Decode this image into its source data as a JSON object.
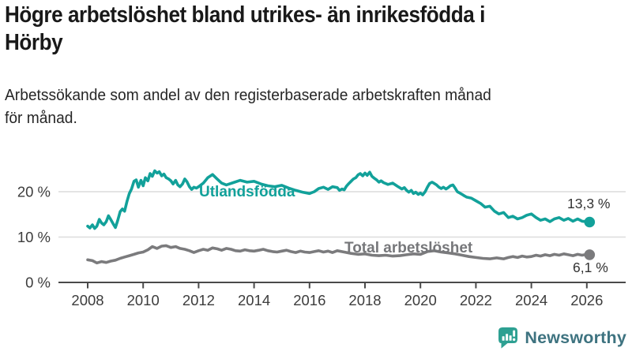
{
  "page": {
    "title": "Högre arbetslöshet bland utrikes- än inrikesfödda i\nHörby",
    "subtitle": "Arbetssökande som andel av den registerbaserade arbetskraften månad\nför månad."
  },
  "logo": {
    "text": "Newsworthy",
    "icon": "newsworthy-chart-bubble-icon",
    "icon_color": "#2da092",
    "text_color": "#3e7380"
  },
  "chart_data": {
    "type": "line",
    "title": "Högre arbetslöshet bland utrikes- än inrikesfödda i Hörby",
    "subtitle": "Arbetssökande som andel av den registerbaserade arbetskraften månad för månad.",
    "unit": "%",
    "legend_position": "inline-labels",
    "grid": "horizontal",
    "x_axis": {
      "ticks": [
        {
          "year": 2008,
          "label": "2008"
        },
        {
          "year": 2010,
          "label": "2010"
        },
        {
          "year": 2012,
          "label": "2012"
        },
        {
          "year": 2014,
          "label": "2014"
        },
        {
          "year": 2016,
          "label": "2016"
        },
        {
          "year": 2018,
          "label": "2018"
        },
        {
          "year": 2020,
          "label": "2020"
        },
        {
          "year": 2022,
          "label": "2022"
        },
        {
          "year": 2024,
          "label": "2024"
        },
        {
          "year": 2026,
          "label": "2026"
        }
      ],
      "range": [
        2008,
        2026.4
      ]
    },
    "y_axis": {
      "ticks": [
        {
          "value": 0,
          "label": "0 %"
        },
        {
          "value": 10,
          "label": "10 %"
        },
        {
          "value": 20,
          "label": "20 %"
        }
      ],
      "gridline_values": [
        10,
        20
      ],
      "range": [
        0,
        26
      ]
    },
    "series": [
      {
        "id": "utlandsfodda",
        "name": "Utlandsfödda",
        "color": "#12a19a",
        "end_label": "13,3 %",
        "end_value": 13.3,
        "points": [
          [
            2008.0,
            12.4
          ],
          [
            2008.08,
            12.0
          ],
          [
            2008.17,
            12.7
          ],
          [
            2008.25,
            11.9
          ],
          [
            2008.33,
            12.4
          ],
          [
            2008.42,
            13.9
          ],
          [
            2008.5,
            13.1
          ],
          [
            2008.58,
            12.7
          ],
          [
            2008.67,
            13.4
          ],
          [
            2008.75,
            14.7
          ],
          [
            2008.83,
            13.9
          ],
          [
            2008.92,
            12.9
          ],
          [
            2009.0,
            12.1
          ],
          [
            2009.08,
            13.6
          ],
          [
            2009.17,
            15.6
          ],
          [
            2009.25,
            16.2
          ],
          [
            2009.33,
            15.7
          ],
          [
            2009.42,
            17.9
          ],
          [
            2009.5,
            19.6
          ],
          [
            2009.58,
            20.6
          ],
          [
            2009.67,
            22.3
          ],
          [
            2009.75,
            22.6
          ],
          [
            2009.83,
            21.0
          ],
          [
            2009.92,
            22.5
          ],
          [
            2010.0,
            21.3
          ],
          [
            2010.08,
            23.1
          ],
          [
            2010.17,
            22.4
          ],
          [
            2010.25,
            24.0
          ],
          [
            2010.33,
            23.4
          ],
          [
            2010.42,
            24.6
          ],
          [
            2010.5,
            24.1
          ],
          [
            2010.58,
            24.4
          ],
          [
            2010.67,
            23.5
          ],
          [
            2010.75,
            23.9
          ],
          [
            2010.83,
            23.1
          ],
          [
            2010.92,
            22.8
          ],
          [
            2011.0,
            22.4
          ],
          [
            2011.08,
            21.7
          ],
          [
            2011.17,
            22.5
          ],
          [
            2011.25,
            21.5
          ],
          [
            2011.33,
            21.1
          ],
          [
            2011.42,
            21.7
          ],
          [
            2011.5,
            22.8
          ],
          [
            2011.58,
            22.2
          ],
          [
            2011.67,
            21.1
          ],
          [
            2011.75,
            20.5
          ],
          [
            2011.83,
            21.0
          ],
          [
            2011.92,
            20.8
          ],
          [
            2012.0,
            21.1
          ],
          [
            2012.17,
            21.9
          ],
          [
            2012.33,
            23.1
          ],
          [
            2012.5,
            23.8
          ],
          [
            2012.67,
            22.8
          ],
          [
            2012.83,
            21.9
          ],
          [
            2013.0,
            21.5
          ],
          [
            2013.25,
            22.0
          ],
          [
            2013.5,
            22.5
          ],
          [
            2013.75,
            22.1
          ],
          [
            2014.0,
            22.3
          ],
          [
            2014.25,
            21.7
          ],
          [
            2014.5,
            21.3
          ],
          [
            2014.75,
            21.1
          ],
          [
            2015.0,
            21.4
          ],
          [
            2015.25,
            20.8
          ],
          [
            2015.5,
            20.3
          ],
          [
            2015.75,
            19.9
          ],
          [
            2016.0,
            19.6
          ],
          [
            2016.17,
            20.0
          ],
          [
            2016.33,
            20.7
          ],
          [
            2016.5,
            21.0
          ],
          [
            2016.67,
            20.5
          ],
          [
            2016.83,
            21.1
          ],
          [
            2017.0,
            20.9
          ],
          [
            2017.08,
            20.3
          ],
          [
            2017.17,
            20.6
          ],
          [
            2017.25,
            20.4
          ],
          [
            2017.33,
            21.2
          ],
          [
            2017.42,
            21.8
          ],
          [
            2017.5,
            22.3
          ],
          [
            2017.58,
            22.8
          ],
          [
            2017.67,
            23.1
          ],
          [
            2017.75,
            23.7
          ],
          [
            2017.83,
            24.0
          ],
          [
            2017.92,
            23.5
          ],
          [
            2018.0,
            24.1
          ],
          [
            2018.08,
            23.6
          ],
          [
            2018.17,
            24.3
          ],
          [
            2018.25,
            23.4
          ],
          [
            2018.33,
            23.0
          ],
          [
            2018.42,
            22.6
          ],
          [
            2018.5,
            22.1
          ],
          [
            2018.58,
            22.4
          ],
          [
            2018.67,
            22.0
          ],
          [
            2018.83,
            21.6
          ],
          [
            2019.0,
            21.9
          ],
          [
            2019.17,
            21.2
          ],
          [
            2019.33,
            20.6
          ],
          [
            2019.42,
            20.9
          ],
          [
            2019.5,
            20.3
          ],
          [
            2019.58,
            19.9
          ],
          [
            2019.67,
            20.3
          ],
          [
            2019.75,
            19.6
          ],
          [
            2019.83,
            19.9
          ],
          [
            2019.92,
            19.4
          ],
          [
            2020.0,
            19.7
          ],
          [
            2020.08,
            19.3
          ],
          [
            2020.17,
            20.0
          ],
          [
            2020.25,
            21.0
          ],
          [
            2020.33,
            21.8
          ],
          [
            2020.42,
            22.1
          ],
          [
            2020.5,
            21.8
          ],
          [
            2020.58,
            21.5
          ],
          [
            2020.67,
            21.0
          ],
          [
            2020.75,
            20.7
          ],
          [
            2020.83,
            21.0
          ],
          [
            2020.92,
            20.6
          ],
          [
            2021.0,
            20.9
          ],
          [
            2021.08,
            21.3
          ],
          [
            2021.17,
            21.5
          ],
          [
            2021.25,
            20.8
          ],
          [
            2021.33,
            20.0
          ],
          [
            2021.42,
            19.7
          ],
          [
            2021.5,
            19.4
          ],
          [
            2021.58,
            19.1
          ],
          [
            2021.67,
            18.8
          ],
          [
            2021.83,
            18.6
          ],
          [
            2022.0,
            18.0
          ],
          [
            2022.17,
            17.4
          ],
          [
            2022.33,
            16.6
          ],
          [
            2022.5,
            16.8
          ],
          [
            2022.67,
            15.7
          ],
          [
            2022.83,
            15.1
          ],
          [
            2023.0,
            15.4
          ],
          [
            2023.17,
            14.3
          ],
          [
            2023.33,
            14.6
          ],
          [
            2023.5,
            14.0
          ],
          [
            2023.67,
            14.3
          ],
          [
            2023.83,
            14.8
          ],
          [
            2024.0,
            15.1
          ],
          [
            2024.17,
            14.3
          ],
          [
            2024.33,
            13.7
          ],
          [
            2024.5,
            14.0
          ],
          [
            2024.67,
            13.4
          ],
          [
            2024.83,
            14.0
          ],
          [
            2025.0,
            14.3
          ],
          [
            2025.17,
            13.7
          ],
          [
            2025.33,
            14.1
          ],
          [
            2025.5,
            13.5
          ],
          [
            2025.67,
            14.0
          ],
          [
            2025.83,
            13.5
          ],
          [
            2026.0,
            13.4
          ],
          [
            2026.1,
            13.3
          ]
        ]
      },
      {
        "id": "total-arbetsloshet",
        "name": "Total arbetslöshet",
        "color": "#7b7b7d",
        "end_label": "6,1 %",
        "end_value": 6.1,
        "points": [
          [
            2008.0,
            5.0
          ],
          [
            2008.17,
            4.8
          ],
          [
            2008.33,
            4.3
          ],
          [
            2008.5,
            4.6
          ],
          [
            2008.67,
            4.4
          ],
          [
            2008.83,
            4.7
          ],
          [
            2009.0,
            4.9
          ],
          [
            2009.17,
            5.3
          ],
          [
            2009.33,
            5.6
          ],
          [
            2009.5,
            5.9
          ],
          [
            2009.67,
            6.2
          ],
          [
            2009.83,
            6.5
          ],
          [
            2010.0,
            6.7
          ],
          [
            2010.17,
            7.2
          ],
          [
            2010.33,
            7.9
          ],
          [
            2010.5,
            7.5
          ],
          [
            2010.67,
            8.0
          ],
          [
            2010.83,
            8.1
          ],
          [
            2011.0,
            7.7
          ],
          [
            2011.17,
            7.9
          ],
          [
            2011.33,
            7.5
          ],
          [
            2011.5,
            7.3
          ],
          [
            2011.67,
            7.0
          ],
          [
            2011.83,
            6.6
          ],
          [
            2012.0,
            7.0
          ],
          [
            2012.17,
            7.3
          ],
          [
            2012.33,
            7.1
          ],
          [
            2012.5,
            7.6
          ],
          [
            2012.67,
            7.4
          ],
          [
            2012.83,
            7.1
          ],
          [
            2013.0,
            7.5
          ],
          [
            2013.17,
            7.3
          ],
          [
            2013.33,
            7.0
          ],
          [
            2013.5,
            6.9
          ],
          [
            2013.67,
            7.2
          ],
          [
            2013.83,
            7.0
          ],
          [
            2014.0,
            6.9
          ],
          [
            2014.17,
            7.1
          ],
          [
            2014.33,
            7.3
          ],
          [
            2014.5,
            7.0
          ],
          [
            2014.67,
            6.8
          ],
          [
            2014.83,
            6.7
          ],
          [
            2015.0,
            6.9
          ],
          [
            2015.17,
            7.1
          ],
          [
            2015.33,
            6.8
          ],
          [
            2015.5,
            6.6
          ],
          [
            2015.67,
            6.9
          ],
          [
            2015.83,
            6.7
          ],
          [
            2016.0,
            6.6
          ],
          [
            2016.17,
            6.8
          ],
          [
            2016.33,
            7.0
          ],
          [
            2016.5,
            6.7
          ],
          [
            2016.67,
            6.9
          ],
          [
            2016.83,
            6.6
          ],
          [
            2017.0,
            7.0
          ],
          [
            2017.25,
            6.7
          ],
          [
            2017.5,
            6.4
          ],
          [
            2017.75,
            6.2
          ],
          [
            2018.0,
            6.3
          ],
          [
            2018.25,
            6.0
          ],
          [
            2018.5,
            5.9
          ],
          [
            2018.75,
            6.0
          ],
          [
            2019.0,
            5.8
          ],
          [
            2019.25,
            5.9
          ],
          [
            2019.5,
            6.1
          ],
          [
            2019.75,
            6.3
          ],
          [
            2020.0,
            6.2
          ],
          [
            2020.25,
            6.8
          ],
          [
            2020.5,
            7.0
          ],
          [
            2020.75,
            6.7
          ],
          [
            2021.0,
            6.5
          ],
          [
            2021.25,
            6.3
          ],
          [
            2021.5,
            6.0
          ],
          [
            2021.75,
            5.7
          ],
          [
            2022.0,
            5.5
          ],
          [
            2022.25,
            5.3
          ],
          [
            2022.5,
            5.2
          ],
          [
            2022.75,
            5.4
          ],
          [
            2023.0,
            5.2
          ],
          [
            2023.17,
            5.5
          ],
          [
            2023.33,
            5.7
          ],
          [
            2023.5,
            5.5
          ],
          [
            2023.67,
            5.8
          ],
          [
            2023.83,
            5.6
          ],
          [
            2024.0,
            5.7
          ],
          [
            2024.17,
            6.0
          ],
          [
            2024.33,
            5.8
          ],
          [
            2024.5,
            6.1
          ],
          [
            2024.67,
            5.9
          ],
          [
            2024.83,
            6.2
          ],
          [
            2025.0,
            6.0
          ],
          [
            2025.17,
            6.3
          ],
          [
            2025.33,
            6.1
          ],
          [
            2025.5,
            5.9
          ],
          [
            2025.67,
            6.2
          ],
          [
            2025.83,
            6.0
          ],
          [
            2026.0,
            6.2
          ],
          [
            2026.1,
            6.1
          ]
        ]
      }
    ],
    "style": {
      "axis_color": "#4a4a4a",
      "gridline_color": "#dcdcdc",
      "tick_label_color": "#3c3c3c"
    }
  }
}
